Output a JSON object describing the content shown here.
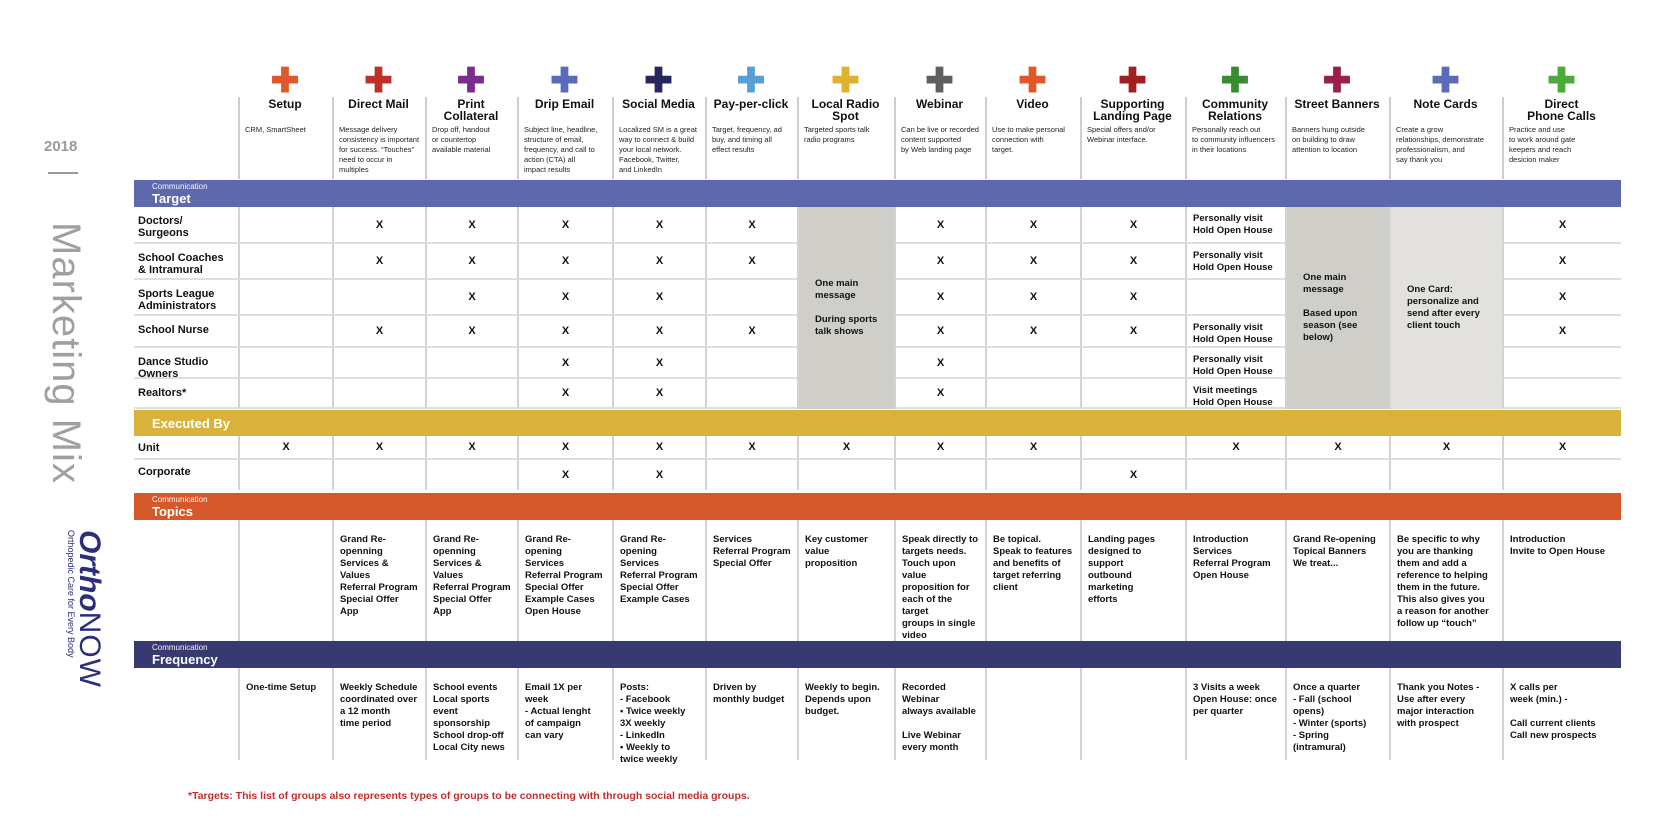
{
  "year": "2018",
  "side_title": "Marketing Mix",
  "logo": {
    "text": "OrthoNOW",
    "tagline": "Orthopedic Care for Every Body",
    "color": "#2b2f7a"
  },
  "channels": [
    {
      "name": "Setup",
      "desc": "CRM, SmartSheet",
      "color": "#e0572a"
    },
    {
      "name": "Direct Mail",
      "desc": "Message delivery\nconsistency is important\nfor success. “Touches”\nneed to occur in\nmultiples",
      "color": "#c0302a"
    },
    {
      "name": "Print\nCollateral",
      "desc": "Drop off, handout\nor countertop\navailable material",
      "color": "#7b2d8e"
    },
    {
      "name": "Drip Email",
      "desc": "Subject line, headline,\nstructure of email,\nfrequency, and call to\naction (CTA) all\nimpact results",
      "color": "#5b6bb8"
    },
    {
      "name": "Social Media",
      "desc": "Localized SM is a great\nway to connect & build\nyour local network.\nFacebook, Twitter,\nand LinkedIn",
      "color": "#27275e"
    },
    {
      "name": "Pay-per-click",
      "desc": "Target, frequency, ad\nbuy, and timing all\neffect results",
      "color": "#5a9fd4"
    },
    {
      "name": "Local Radio\nSpot",
      "desc": "Targeted sports talk\nradio programs",
      "color": "#e0b12e"
    },
    {
      "name": "Webinar",
      "desc": "Can be live or recorded\ncontent supported\nby Web landing page",
      "color": "#5f5f5f"
    },
    {
      "name": "Video",
      "desc": "Use to make personal\nconnection with\ntarget.",
      "color": "#e0572a"
    },
    {
      "name": "Supporting\nLanding Page",
      "desc": "Special offers and/or\nWebinar interface.",
      "color": "#a01f1f"
    },
    {
      "name": "Community\nRelations",
      "desc": "Personally reach out\nto community influencers\nin their locations",
      "color": "#3a8a2f"
    },
    {
      "name": "Street Banners",
      "desc": "Banners hung outside\non building to draw\nattention to location",
      "color": "#9b1f4a"
    },
    {
      "name": "Note Cards",
      "desc": "Create a grow\nrelationships, demonstrate\nprofessionalism, and\nsay thank you",
      "color": "#5b6bb8"
    },
    {
      "name": "Direct\nPhone Calls",
      "desc": "Practice and use\nto work around gate\nkeepers and reach\ndesicion maker",
      "color": "#4aaa3a"
    }
  ],
  "sections": {
    "target": {
      "small": "Communication",
      "title": "Target",
      "color": "#5d68ad"
    },
    "executed": {
      "title": "Executed By",
      "color": "#d9b23c"
    },
    "topics": {
      "small": "Communication",
      "title": "Topics",
      "color": "#d4582a"
    },
    "frequency": {
      "small": "Communication",
      "title": "Frequency",
      "color": "#363a70"
    }
  },
  "target_rows": [
    {
      "label": "Doctors/\nSurgeons",
      "cells": [
        "",
        "X",
        "X",
        "X",
        "X",
        "X",
        null,
        "X",
        "X",
        "X",
        "Personally visit\nHold Open House",
        null,
        null,
        "X"
      ]
    },
    {
      "label": "School Coaches\n& Intramural",
      "cells": [
        "",
        "X",
        "X",
        "X",
        "X",
        "X",
        null,
        "X",
        "X",
        "X",
        "Personally visit\nHold Open House",
        null,
        null,
        "X"
      ]
    },
    {
      "label": "Sports League\nAdministrators",
      "cells": [
        "",
        "",
        "X",
        "X",
        "X",
        "",
        null,
        "X",
        "X",
        "X",
        "",
        null,
        null,
        "X"
      ]
    },
    {
      "label": "School Nurse",
      "cells": [
        "",
        "X",
        "X",
        "X",
        "X",
        "X",
        null,
        "X",
        "X",
        "X",
        "Personally visit\nHold Open House",
        null,
        null,
        "X"
      ]
    },
    {
      "label": "Dance Studio\nOwners",
      "cells": [
        "",
        "",
        "",
        "X",
        "X",
        "",
        null,
        "X",
        "",
        "",
        "Personally visit\nHold Open House",
        null,
        null,
        ""
      ]
    },
    {
      "label": "Realtors*",
      "cells": [
        "",
        "",
        "",
        "X",
        "X",
        "",
        null,
        "X",
        "",
        "",
        "Visit meetings\nHold Open House",
        null,
        null,
        ""
      ]
    }
  ],
  "target_merged": [
    {
      "column": 6,
      "text": "One main\nmessage\n\nDuring sports\ntalk shows",
      "shade": "#d0cec9"
    },
    {
      "column": 11,
      "text": "One main\nmessage\n\nBased upon\nseason (see\nbelow)",
      "shade": "#d0cec9"
    },
    {
      "column": 12,
      "text": "One Card:\npersonalize and\nsend after every\nclient touch",
      "shade": "#e2e1dd"
    }
  ],
  "executed_rows": [
    {
      "label": "Unit",
      "cells": [
        "X",
        "X",
        "X",
        "X",
        "X",
        "X",
        "X",
        "X",
        "X",
        "",
        "X",
        "X",
        "X",
        "X"
      ]
    },
    {
      "label": "Corporate",
      "cells": [
        "",
        "",
        "",
        "X",
        "X",
        "",
        "",
        "",
        "",
        "X",
        "",
        "",
        "",
        ""
      ]
    }
  ],
  "topics": [
    "",
    "Grand Re-openning\nServices & Values\nReferral Program\nSpecial Offer\nApp",
    "Grand Re-openning\nServices & Values\nReferral Program\nSpecial Offer\nApp",
    "Grand Re-opening\nServices\nReferral Program\nSpecial Offer\nExample Cases\nOpen House",
    "Grand Re-opening\nServices\nReferral Program\nSpecial Offer\nExample Cases",
    "Services\nReferral Program\nSpecial Offer",
    "Key customer value\nproposition",
    "Speak directly to\ntargets needs.\nTouch upon value\nproposition for\neach of the target\ngroups in single\nvideo",
    "Be topical.\nSpeak to features\nand benefits of\ntarget referring\nclient",
    "Landing pages\ndesigned to support\noutbound marketing\nefforts",
    "Introduction\nServices\nReferral Program\nOpen House",
    "Grand Re-opening\nTopical Banners\n   We treat...",
    "Be specific to why\nyou are thanking\nthem and add a\nreference to helping\nthem in the future.\nThis also gives you\na reason for another\nfollow up “touch”",
    "Introduction\nInvite to Open  House"
  ],
  "frequency": [
    "One-time Setup",
    "Weekly Schedule\ncoordinated over\na 12 month\ntime period",
    "School events\nLocal sports\n   event sponsorship\nSchool drop-off\nLocal City news",
    "Email 1X per week\n  - Actual lenght\n    of campaign\n    can vary",
    "Posts:\n  - Facebook\n      • Twice weekly\n        3X weekly\n  - LinkedIn\n      • Weekly to\n        twice weekly",
    "Driven by\nmonthly budget",
    "Weekly to begin.\nDepends upon\nbudget.",
    "Recorded Webinar\nalways available\n\nLive Webinar\nevery month",
    "",
    "",
    "3 Visits a week\nOpen House: once\n  per quarter",
    "Once a quarter\n  - Fall (school opens)\n  - Winter (sports)\n  - Spring (intramural)",
    "Thank you Notes -\nUse after every\nmajor interaction\nwith prospect",
    "X calls per\nweek (min.) -\n\nCall current clients\nCall new prospects"
  ],
  "footnote": "*Targets: This list of groups also represents types of groups to be connecting with through social media groups.",
  "footnote_color": "#c0302a"
}
